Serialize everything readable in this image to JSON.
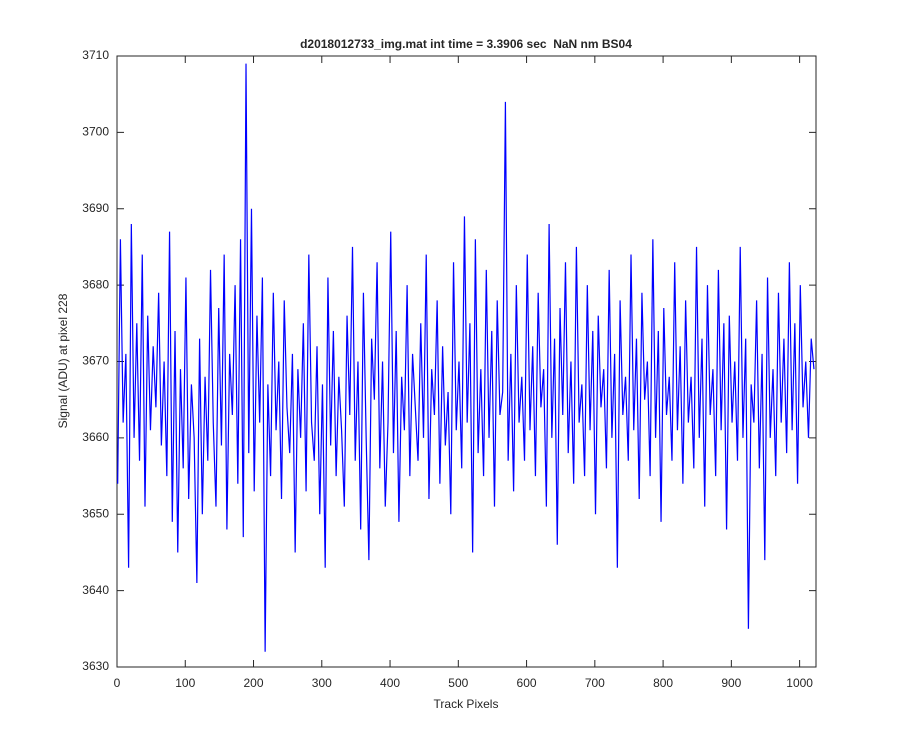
{
  "chart_data": {
    "type": "line",
    "title": "d2018012733_img.mat int time = 3.3906 sec  NaN nm BS04",
    "x_label": "Track Pixels",
    "y_label": "Signal (ADU) at pixel 228",
    "xlim": [
      0,
      1024
    ],
    "xticks": [
      0,
      100,
      200,
      300,
      400,
      500,
      600,
      700,
      800,
      900,
      1000
    ],
    "ylim": [
      3630,
      3710
    ],
    "yticks": [
      3630,
      3640,
      3650,
      3660,
      3670,
      3680,
      3690,
      3700,
      3710
    ],
    "grid": false,
    "x": [
      1,
      5,
      9,
      13,
      17,
      21,
      25,
      29,
      33,
      37,
      41,
      45,
      49,
      53,
      57,
      61,
      65,
      69,
      73,
      77,
      81,
      85,
      89,
      93,
      97,
      101,
      105,
      109,
      113,
      117,
      121,
      125,
      129,
      133,
      137,
      141,
      145,
      149,
      153,
      157,
      161,
      165,
      169,
      173,
      177,
      181,
      185,
      189,
      193,
      197,
      201,
      205,
      209,
      213,
      217,
      221,
      225,
      229,
      233,
      237,
      241,
      245,
      249,
      253,
      257,
      261,
      265,
      269,
      273,
      277,
      281,
      285,
      289,
      293,
      297,
      301,
      305,
      309,
      313,
      317,
      321,
      325,
      329,
      333,
      337,
      341,
      345,
      349,
      353,
      357,
      361,
      365,
      369,
      373,
      377,
      381,
      385,
      389,
      393,
      397,
      401,
      405,
      409,
      413,
      417,
      421,
      425,
      429,
      433,
      437,
      441,
      445,
      449,
      453,
      457,
      461,
      465,
      469,
      473,
      477,
      481,
      485,
      489,
      493,
      497,
      501,
      505,
      509,
      513,
      517,
      521,
      525,
      529,
      533,
      537,
      541,
      545,
      549,
      553,
      557,
      561,
      565,
      569,
      573,
      577,
      581,
      585,
      589,
      593,
      597,
      601,
      605,
      609,
      613,
      617,
      621,
      625,
      629,
      633,
      637,
      641,
      645,
      649,
      653,
      657,
      661,
      665,
      669,
      673,
      677,
      681,
      685,
      689,
      693,
      697,
      701,
      705,
      709,
      713,
      717,
      721,
      725,
      729,
      733,
      737,
      741,
      745,
      749,
      753,
      757,
      761,
      765,
      769,
      773,
      777,
      781,
      785,
      789,
      793,
      797,
      801,
      805,
      809,
      813,
      817,
      821,
      825,
      829,
      833,
      837,
      841,
      845,
      849,
      853,
      857,
      861,
      865,
      869,
      873,
      877,
      881,
      885,
      889,
      893,
      897,
      901,
      905,
      909,
      913,
      917,
      921,
      925,
      929,
      933,
      937,
      941,
      945,
      949,
      953,
      957,
      961,
      965,
      969,
      973,
      977,
      981,
      985,
      989,
      993,
      997,
      1001,
      1005,
      1009,
      1013,
      1017,
      1021
    ],
    "series": [
      {
        "color": "#0000ff",
        "values": [
          3654,
          3686,
          3662,
          3671,
          3643,
          3688,
          3660,
          3675,
          3657,
          3684,
          3651,
          3676,
          3661,
          3672,
          3664,
          3679,
          3659,
          3670,
          3655,
          3687,
          3649,
          3674,
          3645,
          3669,
          3656,
          3681,
          3652,
          3667,
          3660,
          3641,
          3673,
          3650,
          3668,
          3657,
          3682,
          3662,
          3651,
          3677,
          3659,
          3684,
          3648,
          3671,
          3663,
          3680,
          3654,
          3686,
          3647,
          3709,
          3658,
          3690,
          3653,
          3676,
          3662,
          3681,
          3632,
          3667,
          3655,
          3679,
          3661,
          3670,
          3652,
          3678,
          3664,
          3658,
          3671,
          3645,
          3669,
          3660,
          3675,
          3653,
          3684,
          3662,
          3657,
          3672,
          3650,
          3667,
          3643,
          3681,
          3659,
          3674,
          3655,
          3668,
          3661,
          3651,
          3676,
          3663,
          3685,
          3657,
          3670,
          3648,
          3679,
          3660,
          3644,
          3673,
          3665,
          3683,
          3656,
          3670,
          3651,
          3662,
          3687,
          3658,
          3674,
          3649,
          3668,
          3661,
          3680,
          3655,
          3671,
          3664,
          3657,
          3675,
          3660,
          3684,
          3652,
          3669,
          3663,
          3678,
          3654,
          3672,
          3659,
          3666,
          3650,
          3683,
          3661,
          3670,
          3656,
          3689,
          3662,
          3675,
          3645,
          3686,
          3658,
          3669,
          3655,
          3682,
          3660,
          3674,
          3651,
          3678,
          3663,
          3666,
          3704,
          3657,
          3671,
          3653,
          3680,
          3662,
          3668,
          3657,
          3684,
          3661,
          3672,
          3655,
          3679,
          3664,
          3669,
          3651,
          3688,
          3660,
          3673,
          3646,
          3677,
          3663,
          3683,
          3658,
          3670,
          3654,
          3685,
          3662,
          3667,
          3655,
          3680,
          3661,
          3674,
          3650,
          3676,
          3664,
          3669,
          3656,
          3682,
          3660,
          3671,
          3643,
          3678,
          3663,
          3668,
          3657,
          3684,
          3661,
          3673,
          3652,
          3679,
          3665,
          3670,
          3655,
          3686,
          3660,
          3674,
          3649,
          3677,
          3663,
          3668,
          3657,
          3683,
          3661,
          3672,
          3654,
          3678,
          3662,
          3668,
          3656,
          3685,
          3660,
          3673,
          3651,
          3680,
          3663,
          3669,
          3655,
          3682,
          3661,
          3675,
          3648,
          3676,
          3662,
          3670,
          3657,
          3685,
          3660,
          3673,
          3635,
          3667,
          3662,
          3678,
          3656,
          3671,
          3644,
          3681,
          3660,
          3669,
          3655,
          3679,
          3662,
          3673,
          3658,
          3683,
          3661,
          3675,
          3654,
          3680,
          3664,
          3670,
          3660,
          3673,
          3669
        ]
      }
    ]
  }
}
